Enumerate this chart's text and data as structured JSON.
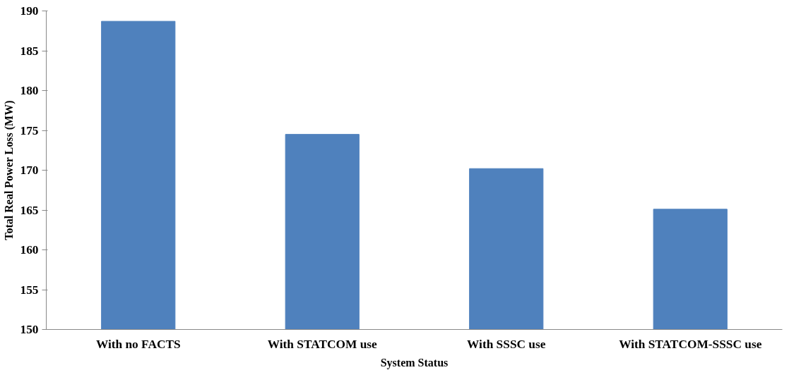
{
  "chart_data": {
    "type": "bar",
    "xlabel": "System Status",
    "ylabel": "Total Real Power Loss (MW)",
    "categories": [
      "With no FACTS",
      "With STATCOM use",
      "With SSSC use",
      "With STATCOM-SSSC use"
    ],
    "values": [
      188.7,
      174.5,
      170.2,
      165.1
    ],
    "color": "#4f81bd",
    "ylim": [
      150,
      190
    ],
    "yticks": [
      150,
      155,
      160,
      165,
      170,
      175,
      180,
      185,
      190
    ],
    "grid": false
  }
}
